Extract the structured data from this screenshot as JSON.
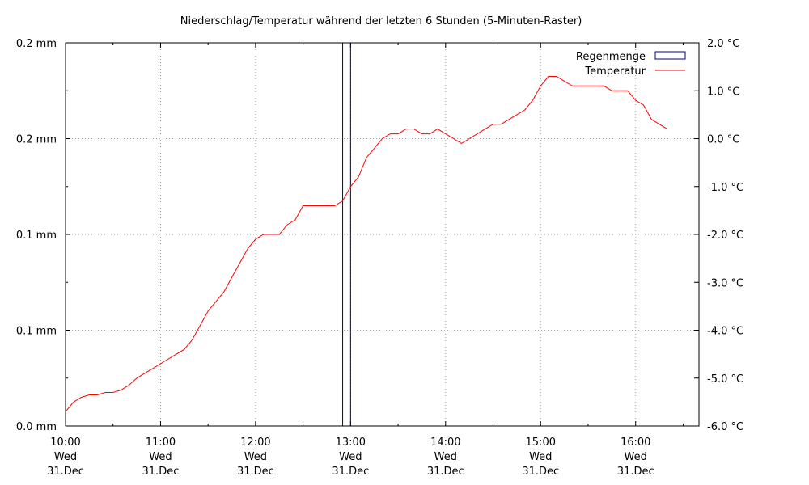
{
  "chart_data": {
    "type": "line",
    "title": "Niederschlag/Temperatur während der letzten 6 Stunden (5-Minuten-Raster)",
    "grid": true,
    "legend_position": "top-right",
    "x": {
      "range": [
        "10:00",
        "16:40"
      ],
      "ticks": [
        {
          "time": "10:00",
          "lines": [
            "10:00",
            "Wed",
            "31.Dec"
          ]
        },
        {
          "time": "11:00",
          "lines": [
            "11:00",
            "Wed",
            "31.Dec"
          ]
        },
        {
          "time": "12:00",
          "lines": [
            "12:00",
            "Wed",
            "31.Dec"
          ]
        },
        {
          "time": "13:00",
          "lines": [
            "13:00",
            "Wed",
            "31.Dec"
          ]
        },
        {
          "time": "14:00",
          "lines": [
            "14:00",
            "Wed",
            "31.Dec"
          ]
        },
        {
          "time": "15:00",
          "lines": [
            "15:00",
            "Wed",
            "31.Dec"
          ]
        },
        {
          "time": "16:00",
          "lines": [
            "16:00",
            "Wed",
            "31.Dec"
          ]
        }
      ]
    },
    "y_left": {
      "range": [
        0,
        0.2
      ],
      "ticks": [
        {
          "value": 0,
          "label": "0.0 mm"
        },
        {
          "value": 0.05,
          "label": "0.1 mm"
        },
        {
          "value": 0.1,
          "label": "0.1 mm"
        },
        {
          "value": 0.15,
          "label": "0.2 mm"
        },
        {
          "value": 0.2,
          "label": "0.2 mm"
        }
      ]
    },
    "y_right": {
      "range": [
        -6,
        2
      ],
      "ticks": [
        {
          "value": -6,
          "label": "-6.0 °C"
        },
        {
          "value": -5,
          "label": "-5.0 °C"
        },
        {
          "value": -4,
          "label": "-4.0 °C"
        },
        {
          "value": -3,
          "label": "-3.0 °C"
        },
        {
          "value": -2,
          "label": "-2.0 °C"
        },
        {
          "value": -1,
          "label": "-1.0 °C"
        },
        {
          "value": 0,
          "label": "0.0 °C"
        },
        {
          "value": 1,
          "label": "1.0 °C"
        },
        {
          "value": 2,
          "label": "2.0 °C"
        }
      ]
    },
    "series": [
      {
        "name": "Regenmenge",
        "type": "bar",
        "color": "#000080",
        "axis": "left",
        "points": [
          {
            "start": "12:55",
            "end": "13:00",
            "value": 0.2
          }
        ]
      },
      {
        "name": "Temperatur",
        "type": "line",
        "color": "#ff0000",
        "axis": "right",
        "points": [
          [
            "10:00",
            -5.7
          ],
          [
            "10:05",
            -5.5
          ],
          [
            "10:10",
            -5.4
          ],
          [
            "10:15",
            -5.35
          ],
          [
            "10:20",
            -5.35
          ],
          [
            "10:25",
            -5.3
          ],
          [
            "10:30",
            -5.3
          ],
          [
            "10:35",
            -5.25
          ],
          [
            "10:40",
            -5.15
          ],
          [
            "10:45",
            -5.0
          ],
          [
            "10:50",
            -4.9
          ],
          [
            "10:55",
            -4.8
          ],
          [
            "11:00",
            -4.7
          ],
          [
            "11:05",
            -4.6
          ],
          [
            "11:10",
            -4.5
          ],
          [
            "11:15",
            -4.4
          ],
          [
            "11:20",
            -4.2
          ],
          [
            "11:25",
            -3.9
          ],
          [
            "11:30",
            -3.6
          ],
          [
            "11:35",
            -3.4
          ],
          [
            "11:40",
            -3.2
          ],
          [
            "11:45",
            -2.9
          ],
          [
            "11:50",
            -2.6
          ],
          [
            "11:55",
            -2.3
          ],
          [
            "12:00",
            -2.1
          ],
          [
            "12:05",
            -2.0
          ],
          [
            "12:10",
            -2.0
          ],
          [
            "12:15",
            -2.0
          ],
          [
            "12:20",
            -1.8
          ],
          [
            "12:25",
            -1.7
          ],
          [
            "12:30",
            -1.4
          ],
          [
            "12:35",
            -1.4
          ],
          [
            "12:40",
            -1.4
          ],
          [
            "12:45",
            -1.4
          ],
          [
            "12:50",
            -1.4
          ],
          [
            "12:55",
            -1.3
          ],
          [
            "13:00",
            -1.0
          ],
          [
            "13:05",
            -0.8
          ],
          [
            "13:10",
            -0.4
          ],
          [
            "13:15",
            -0.2
          ],
          [
            "13:20",
            0.0
          ],
          [
            "13:25",
            0.1
          ],
          [
            "13:30",
            0.1
          ],
          [
            "13:35",
            0.2
          ],
          [
            "13:40",
            0.2
          ],
          [
            "13:45",
            0.1
          ],
          [
            "13:50",
            0.1
          ],
          [
            "13:55",
            0.2
          ],
          [
            "14:00",
            0.1
          ],
          [
            "14:05",
            0.0
          ],
          [
            "14:10",
            -0.1
          ],
          [
            "14:15",
            0.0
          ],
          [
            "14:20",
            0.1
          ],
          [
            "14:25",
            0.2
          ],
          [
            "14:30",
            0.3
          ],
          [
            "14:35",
            0.3
          ],
          [
            "14:40",
            0.4
          ],
          [
            "14:45",
            0.5
          ],
          [
            "14:50",
            0.6
          ],
          [
            "14:55",
            0.8
          ],
          [
            "15:00",
            1.1
          ],
          [
            "15:05",
            1.3
          ],
          [
            "15:10",
            1.3
          ],
          [
            "15:15",
            1.2
          ],
          [
            "15:20",
            1.1
          ],
          [
            "15:25",
            1.1
          ],
          [
            "15:30",
            1.1
          ],
          [
            "15:35",
            1.1
          ],
          [
            "15:40",
            1.1
          ],
          [
            "15:45",
            1.0
          ],
          [
            "15:50",
            1.0
          ],
          [
            "15:55",
            1.0
          ],
          [
            "16:00",
            0.8
          ],
          [
            "16:05",
            0.7
          ],
          [
            "16:10",
            0.4
          ],
          [
            "16:15",
            0.3
          ],
          [
            "16:20",
            0.2
          ]
        ]
      }
    ]
  }
}
